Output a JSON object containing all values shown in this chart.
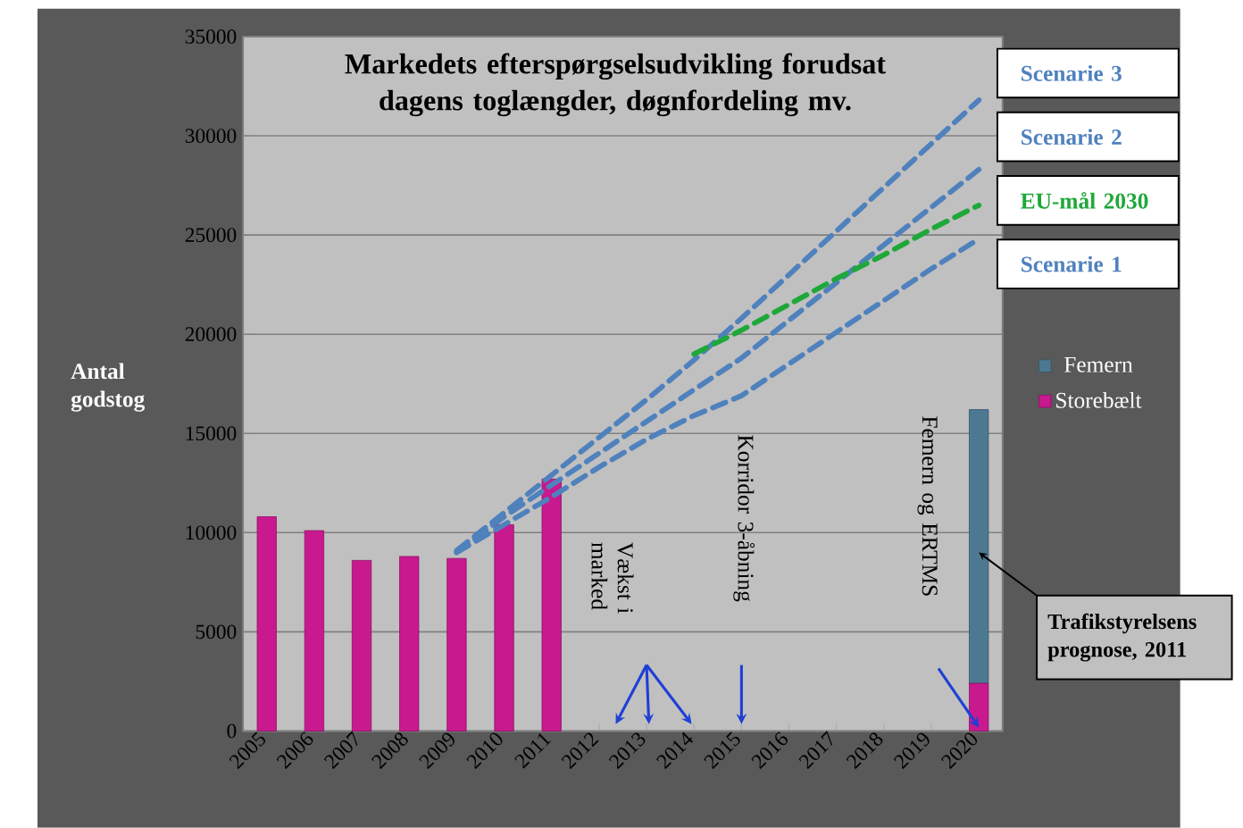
{
  "chart_data": {
    "type": "bar",
    "stacked": true,
    "title": "Markedets efterspørgselsudvikling forudsat dagens toglængder, døgnfordeling mv.",
    "ylabel": "Antal godstog",
    "categories": [
      "2005",
      "2006",
      "2007",
      "2008",
      "2009",
      "2010",
      "2011",
      "2012",
      "2013",
      "2014",
      "2015",
      "2016",
      "2017",
      "2018",
      "2019",
      "2020"
    ],
    "ylim": [
      0,
      35000
    ],
    "yticks": [
      0,
      5000,
      10000,
      15000,
      20000,
      25000,
      30000,
      35000
    ],
    "grid": "y",
    "legend": "right",
    "line_style": "dashed",
    "series": [
      {
        "name": "Storebælt",
        "color": "#c8198f",
        "values": [
          10800,
          10100,
          8600,
          8800,
          8700,
          10400,
          12700,
          null,
          null,
          null,
          null,
          null,
          null,
          null,
          null,
          2400
        ]
      },
      {
        "name": "Femern",
        "color": "#4d7891",
        "values": [
          null,
          null,
          null,
          null,
          null,
          null,
          null,
          null,
          null,
          null,
          null,
          null,
          null,
          null,
          null,
          13800
        ]
      },
      {
        "name": "Scenarie 3",
        "type": "line",
        "color": "#4f81bd",
        "values": [
          null,
          null,
          null,
          null,
          9100,
          11000,
          12900,
          14800,
          16700,
          18700,
          20800,
          23000,
          25200,
          27400,
          29600,
          31800
        ]
      },
      {
        "name": "Scenarie 2",
        "type": "line",
        "color": "#4f81bd",
        "values": [
          null,
          null,
          null,
          null,
          9000,
          10800,
          12400,
          14000,
          15600,
          17200,
          18800,
          20700,
          22600,
          24500,
          26400,
          28300
        ]
      },
      {
        "name": "EU-mål 2030",
        "type": "line",
        "color": "#1fa83a",
        "values": [
          null,
          null,
          null,
          null,
          null,
          null,
          null,
          null,
          null,
          19000,
          20200,
          21500,
          22800,
          24000,
          25300,
          26500
        ]
      },
      {
        "name": "Scenarie 1",
        "type": "line",
        "color": "#4f81bd",
        "values": [
          null,
          null,
          null,
          null,
          9000,
          10400,
          11800,
          13300,
          14700,
          15900,
          16900,
          18500,
          20100,
          21700,
          23300,
          24800
        ]
      }
    ],
    "annotations": [
      "Vækst i marked",
      "Korridor 3-åbning",
      "Femern og ERTMS",
      "Trafikstyrelsens prognose, 2011"
    ]
  }
}
